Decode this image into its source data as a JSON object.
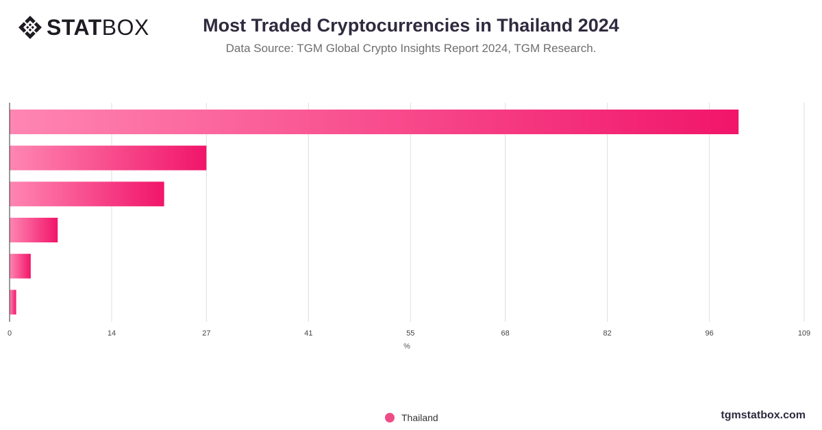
{
  "brand": {
    "logo_bold": "STAT",
    "logo_light": "BOX",
    "logo_icon": "diamond-lattice-icon",
    "watermark": "tgmstatbox.com"
  },
  "colors": {
    "bar_start": "#ff86b2",
    "bar_end": "#f1156a",
    "grid": "#dddddd",
    "axis": "#333333",
    "legend_dot": "#ee4c86"
  },
  "chart_data": {
    "type": "bar",
    "orientation": "horizontal",
    "title": "Most Traded Cryptocurrencies in Thailand 2024",
    "subtitle": "Data Source: TGM Global Crypto Insights Report 2024, TGM Research.",
    "xlabel": "%",
    "ylabel": "",
    "xlim": [
      0,
      109
    ],
    "x_ticks": [
      0,
      14,
      27,
      41,
      55,
      68,
      82,
      96,
      109
    ],
    "grid": true,
    "legend": "bottom-center",
    "series": [
      {
        "name": "Thailand",
        "values": [
          100,
          27,
          21.2,
          6.6,
          2.9,
          0.9
        ]
      }
    ]
  }
}
